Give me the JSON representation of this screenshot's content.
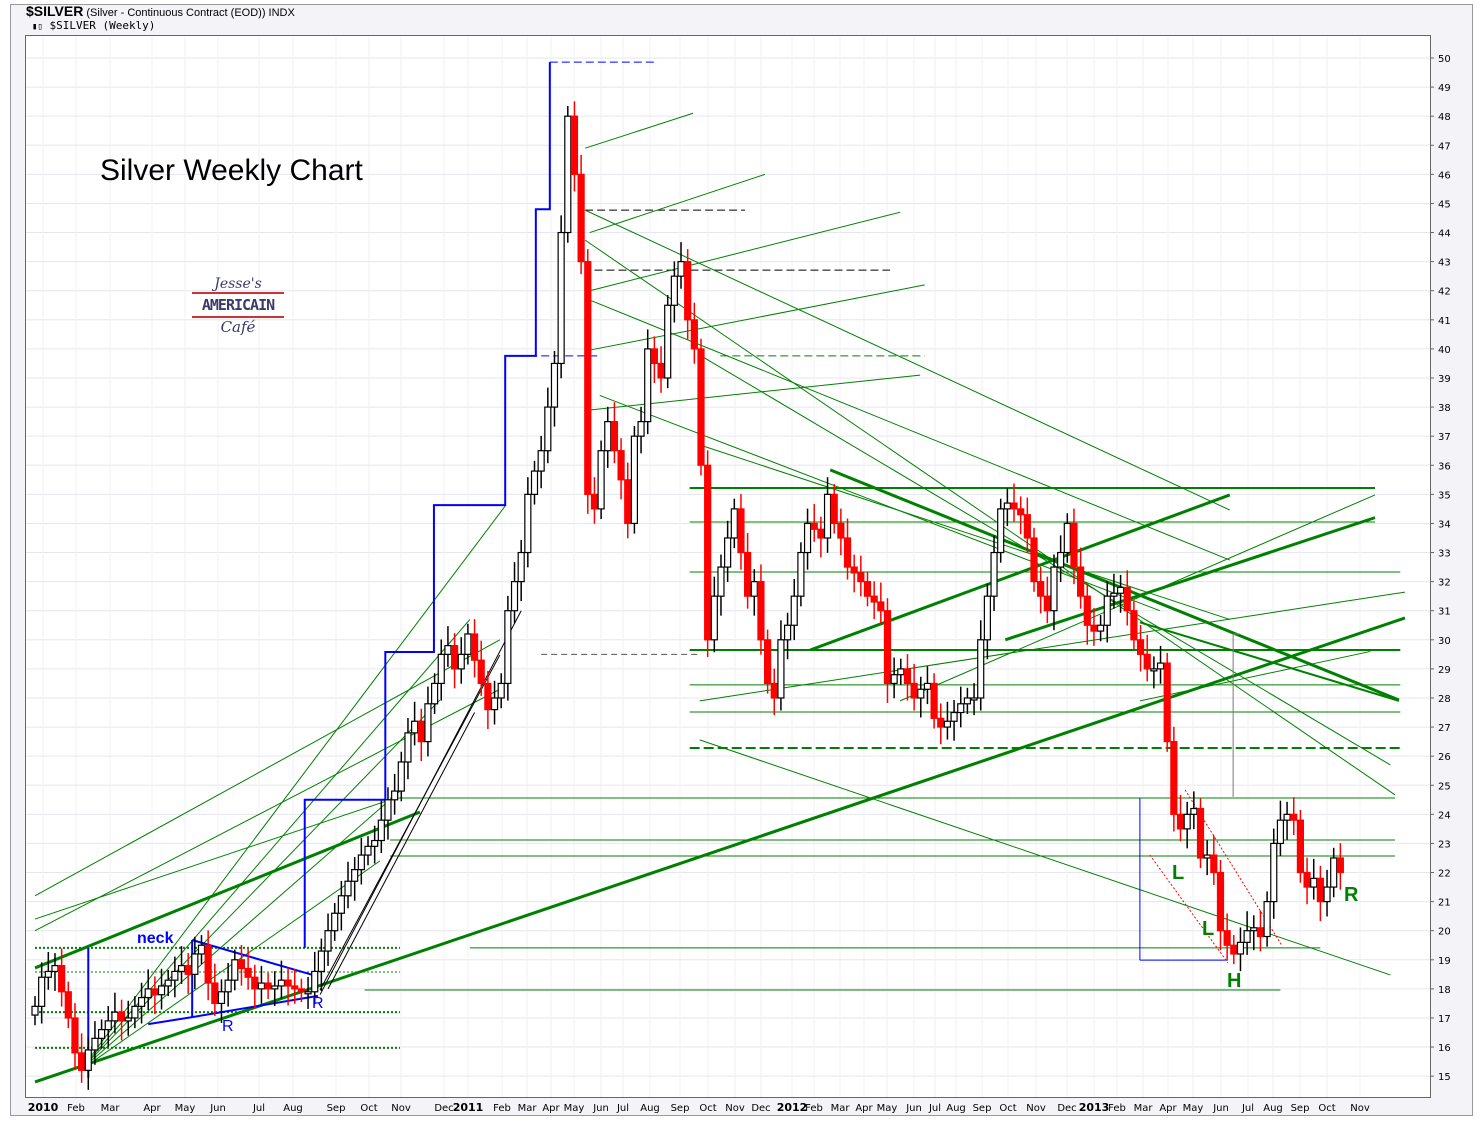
{
  "header": {
    "symbol": "$SILVER",
    "description": "(Silver - Continuous Contract (EOD))",
    "exchange": "INDX",
    "series_label": "$SILVER (Weekly)"
  },
  "logo": {
    "line1": "Jesse's",
    "line2": "AMERICAIN",
    "line3": "Café"
  },
  "chart_data": {
    "type": "candlestick",
    "title": "Silver Weekly Chart",
    "frequency": "weekly",
    "x_range": [
      "2010-01",
      "2013-11"
    ],
    "ylim": [
      15,
      50
    ],
    "y_ticks": [
      15,
      16,
      17,
      18,
      19,
      20,
      21,
      22,
      23,
      24,
      25,
      26,
      27,
      28,
      29,
      30,
      31,
      32,
      33,
      34,
      35,
      36,
      37,
      38,
      39,
      40,
      41,
      42,
      43,
      44,
      45,
      46,
      47,
      48,
      49,
      50
    ],
    "x_tick_labels": [
      "2010",
      "Feb",
      "Mar",
      "Apr",
      "May",
      "Jun",
      "Jul",
      "Aug",
      "Sep",
      "Oct",
      "Nov",
      "Dec",
      "2011",
      "Feb",
      "Mar",
      "Apr",
      "May",
      "Jun",
      "Jul",
      "Aug",
      "Sep",
      "Oct",
      "Nov",
      "Dec",
      "2012",
      "Feb",
      "Mar",
      "Apr",
      "May",
      "Jun",
      "Jul",
      "Aug",
      "Sep",
      "Oct",
      "Nov",
      "Dec",
      "2013",
      "Feb",
      "Mar",
      "Apr",
      "May",
      "Jun",
      "Jul",
      "Aug",
      "Sep",
      "Oct",
      "Nov"
    ],
    "grid": true,
    "y_axis_side": "right",
    "colors": {
      "up": "#000000",
      "down": "#ff0000",
      "trendline": "#008000",
      "pattern": "#0000ff",
      "grid": "#e6e6f0"
    },
    "weekly_closes": [
      17.4,
      18.4,
      18.6,
      18.8,
      17.9,
      17.0,
      15.8,
      15.2,
      15.9,
      16.3,
      16.6,
      16.9,
      17.2,
      16.9,
      17.0,
      17.4,
      17.7,
      18.0,
      17.8,
      18.1,
      18.3,
      18.6,
      18.8,
      18.5,
      19.2,
      19.5,
      18.2,
      17.5,
      17.9,
      18.3,
      19.0,
      18.7,
      18.4,
      18.0,
      18.2,
      18.0,
      18.1,
      18.3,
      18.1,
      18.0,
      17.9,
      17.9,
      18.6,
      19.3,
      20.0,
      20.6,
      21.2,
      21.7,
      22.1,
      22.6,
      22.9,
      23.1,
      23.8,
      24.5,
      24.8,
      25.8,
      26.8,
      27.2,
      26.5,
      27.8,
      28.5,
      29.5,
      29.8,
      29.0,
      29.5,
      30.2,
      29.3,
      28.5,
      27.6,
      28.0,
      28.5,
      31.0,
      32.0,
      33.0,
      35.0,
      35.8,
      36.5,
      38.0,
      39.5,
      44.0,
      48.0,
      46.0,
      43.0,
      35.0,
      34.5,
      36.5,
      37.5,
      36.5,
      35.5,
      34.0,
      37.0,
      37.5,
      40.0,
      39.5,
      39.0,
      41.5,
      42.5,
      43.0,
      41.0,
      40.0,
      36.0,
      30.0,
      31.5,
      32.5,
      33.5,
      34.5,
      33.0,
      31.5,
      32.0,
      30.0,
      28.5,
      28.0,
      30.0,
      30.5,
      31.5,
      33.0,
      34.0,
      33.8,
      33.5,
      35.0,
      34.0,
      33.5,
      32.5,
      32.3,
      32.0,
      31.5,
      31.3,
      31.0,
      28.5,
      28.8,
      29.0,
      28.5,
      28.0,
      28.3,
      28.5,
      27.3,
      27.0,
      27.2,
      27.5,
      27.8,
      28.0,
      28.0,
      30.0,
      31.5,
      33.0,
      34.5,
      34.7,
      34.5,
      34.3,
      33.5,
      32.0,
      31.5,
      31.0,
      32.5,
      33.0,
      34.0,
      32.5,
      31.5,
      30.5,
      30.3,
      30.5,
      31.5,
      31.6,
      31.8,
      31.0,
      30.0,
      29.5,
      29.0,
      29.0,
      29.2,
      26.5,
      24.0,
      23.5,
      24.0,
      24.2,
      22.5,
      22.6,
      22.0,
      20.0,
      19.5,
      19.2,
      19.6,
      20.0,
      20.1,
      19.8,
      21.0,
      23.0,
      23.8,
      24.0,
      23.8,
      22.0,
      21.5,
      21.8,
      21.0,
      21.5,
      22.5,
      22.0
    ],
    "annotations": {
      "labels": [
        "neck",
        "R",
        "R",
        "L",
        "L",
        "H",
        "R"
      ]
    }
  }
}
